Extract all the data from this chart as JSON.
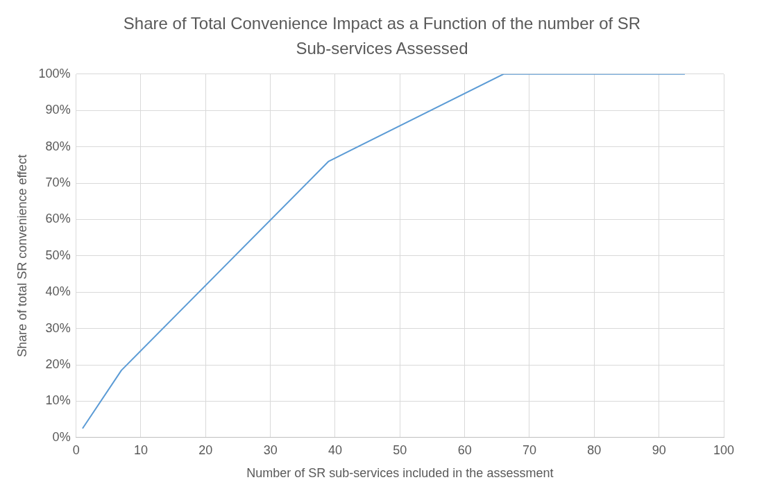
{
  "chart_data": {
    "type": "line",
    "title": "Share of Total Convenience Impact as a Function of the number of SR Sub-services Assessed",
    "xlabel": "Number of SR sub-services included in the assessment",
    "ylabel": "Share of total SR convenience effect",
    "series": [
      {
        "color": "#5b9bd5",
        "x": [
          1,
          7,
          39,
          66,
          94
        ],
        "values": [
          2.5,
          18.5,
          76,
          100,
          100
        ]
      }
    ],
    "xlim": [
      0,
      100
    ],
    "xticks": [
      0,
      10,
      20,
      30,
      40,
      50,
      60,
      70,
      80,
      90,
      100
    ],
    "ylim": [
      0,
      100
    ],
    "yticks": [
      {
        "value": 0,
        "label": "0%"
      },
      {
        "value": 10,
        "label": "10%"
      },
      {
        "value": 20,
        "label": "20%"
      },
      {
        "value": 30,
        "label": "30%"
      },
      {
        "value": 40,
        "label": "40%"
      },
      {
        "value": 50,
        "label": "50%"
      },
      {
        "value": 60,
        "label": "60%"
      },
      {
        "value": 70,
        "label": "70%"
      },
      {
        "value": 80,
        "label": "80%"
      },
      {
        "value": 90,
        "label": "90%"
      },
      {
        "value": 100,
        "label": "100%"
      }
    ],
    "grid": true,
    "legend": false,
    "marker": "none",
    "line_style": "solid"
  }
}
